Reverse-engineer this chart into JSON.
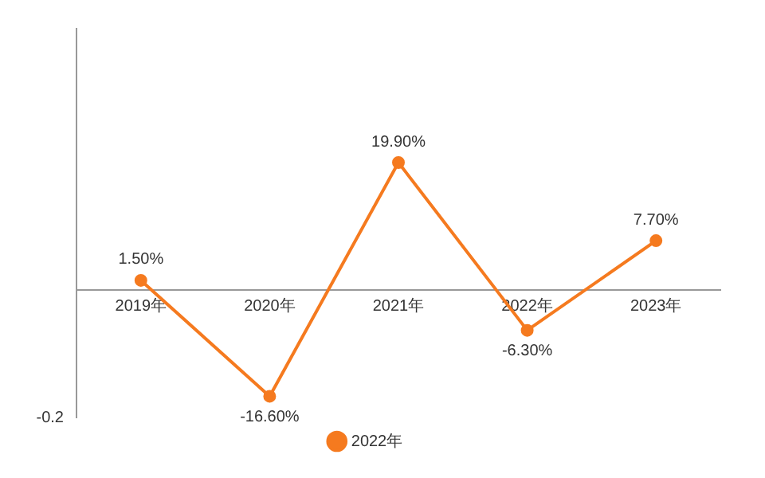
{
  "chart_data": {
    "type": "line",
    "categories": [
      "2019年",
      "2020年",
      "2021年",
      "2022年",
      "2023年"
    ],
    "series": [
      {
        "name": "2022年",
        "color": "#f57a1f",
        "values": [
          1.5,
          -16.6,
          19.9,
          -6.3,
          7.7
        ],
        "value_labels": [
          "1.50%",
          "-16.60%",
          "19.90%",
          "-6.30%",
          "7.70%"
        ]
      }
    ],
    "annotations": [
      "-0.2"
    ],
    "grid": false,
    "legend": "bottom",
    "marker": "circle",
    "line_style": "solid"
  }
}
